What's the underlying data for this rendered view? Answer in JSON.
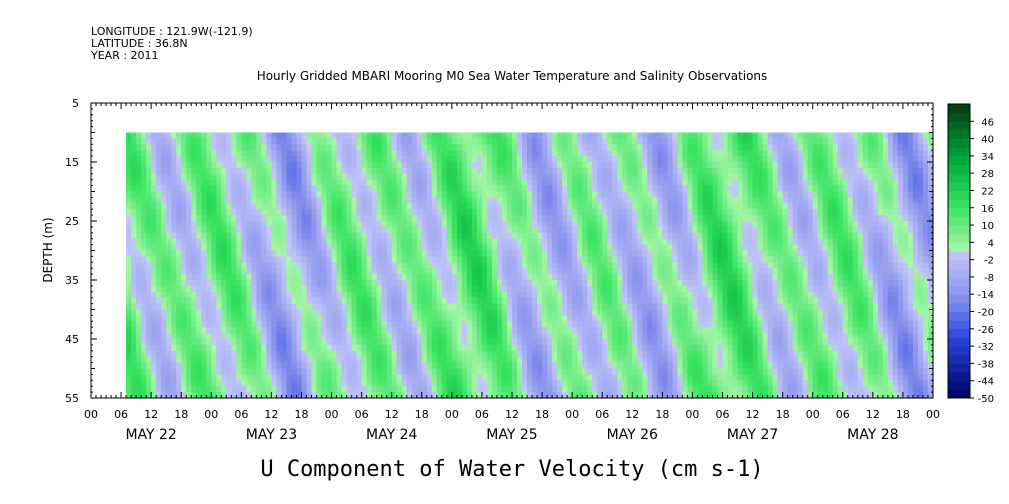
{
  "header": {
    "longitude": "LONGITUDE : 121.9W(-121.9)",
    "latitude": "LATITUDE : 36.8N",
    "year": "YEAR : 2011"
  },
  "chart_data": {
    "type": "heatmap",
    "title": "Hourly Gridded MBARI Mooring M0 Sea Water Temperature and Salinity Observations",
    "xlabel": "U Component of Water Velocity (cm s-1)",
    "ylabel": "DEPTH (m)",
    "ylim": [
      5,
      55
    ],
    "y_inverted": true,
    "yticks": [
      5,
      15,
      25,
      35,
      45,
      55
    ],
    "x_day_labels": [
      "MAY 22",
      "MAY 23",
      "MAY 24",
      "MAY 25",
      "MAY 26",
      "MAY 27",
      "MAY 28"
    ],
    "x_hour_labels": [
      "00",
      "06",
      "12",
      "18",
      "00",
      "06",
      "12",
      "18",
      "00",
      "06",
      "12",
      "18",
      "00",
      "06",
      "12",
      "18",
      "00",
      "06",
      "12",
      "18",
      "00",
      "06",
      "12",
      "18",
      "00",
      "06",
      "12",
      "18",
      "00"
    ],
    "x_range_hours": [
      0,
      168
    ],
    "data_depth_range_m": [
      10,
      55
    ],
    "data_time_start_hour": 7,
    "colorbar": {
      "levels": [
        46,
        40,
        34,
        28,
        22,
        16,
        10,
        4,
        -2,
        -8,
        -14,
        -20,
        -26,
        -32,
        -38,
        -44,
        -50
      ],
      "range": [
        -50,
        52
      ],
      "step": 3
    },
    "grid": false,
    "approx_value_pattern": "alternating bands of positive (green, about +5 to +25) and negative (blue, about -5 to -30) U velocity, roughly semidiurnal, tilted with depth"
  }
}
